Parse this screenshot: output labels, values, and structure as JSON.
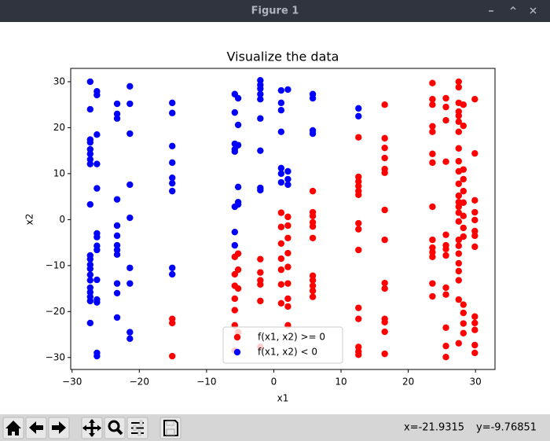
{
  "window": {
    "title": "Figure 1"
  },
  "status": {
    "x": "x=-21.9315",
    "y": "y=-9.76851"
  },
  "chart_data": {
    "type": "scatter",
    "title": "Visualize the data",
    "x_label": "x1",
    "y_label": "x2",
    "xlim": [
      -30.2,
      32.9
    ],
    "ylim": [
      -32.6,
      32.9
    ],
    "xticks": [
      {
        "value": -30,
        "label": "−30"
      },
      {
        "value": -20,
        "label": "−20"
      },
      {
        "value": -10,
        "label": "−10"
      },
      0,
      10,
      20,
      30
    ],
    "yticks": [
      {
        "value": -30,
        "label": "−30"
      },
      {
        "value": -20,
        "label": "−20"
      },
      {
        "value": -10,
        "label": "−10"
      },
      0,
      10,
      20,
      30
    ],
    "legend": "lower center",
    "series": [
      {
        "name": "f(x1, x2) >= 0",
        "color": "#ff0000",
        "x": [
          -15.1,
          -15.1,
          -15.1,
          -5.8,
          -5.8,
          -5.8,
          -5.8,
          -5.8,
          -5.8,
          -5.8,
          -5.3,
          -5.3,
          -5.3,
          -5.3,
          -2.0,
          -2.0,
          -2.0,
          -2.0,
          -2.0,
          -2.0,
          1.1,
          1.1,
          1.1,
          1.1,
          1.1,
          1.1,
          1.1,
          2.1,
          2.1,
          2.1,
          2.1,
          2.1,
          2.1,
          2.1,
          2.1,
          2.1,
          5.8,
          5.8,
          5.8,
          5.8,
          5.8,
          5.8,
          5.8,
          5.8,
          5.8,
          5.8,
          5.8,
          12.6,
          12.6,
          12.6,
          12.6,
          12.6,
          12.6,
          12.6,
          12.6,
          12.6,
          12.6,
          12.6,
          12.6,
          12.6,
          12.6,
          16.5,
          16.5,
          16.5,
          16.5,
          16.5,
          16.5,
          16.5,
          16.5,
          16.5,
          16.5,
          16.5,
          16.5,
          16.5,
          16.5,
          23.6,
          23.6,
          23.6,
          23.6,
          23.6,
          23.6,
          23.6,
          23.6,
          23.6,
          23.6,
          23.6,
          23.6,
          23.6,
          23.6,
          25.6,
          25.6,
          25.6,
          25.6,
          25.6,
          25.6,
          25.6,
          25.6,
          25.6,
          25.6,
          25.6,
          25.6,
          25.6,
          27.5,
          27.5,
          27.5,
          27.5,
          27.5,
          27.5,
          27.5,
          27.5,
          27.5,
          27.5,
          27.5,
          27.5,
          27.5,
          27.5,
          27.5,
          27.5,
          27.5,
          27.5,
          27.5,
          27.5,
          27.5,
          27.5,
          27.5,
          27.5,
          28.2,
          28.2,
          28.2,
          28.2,
          28.2,
          28.2,
          28.2,
          28.2,
          28.2,
          28.2,
          28.2,
          28.2,
          28.2,
          29.9,
          29.9,
          29.9,
          29.9,
          29.9,
          29.9,
          29.9,
          29.9,
          29.9,
          29.9,
          29.9,
          29.9,
          29.9
        ],
        "values": [
          -21.6,
          -22.5,
          -29.7,
          -8.1,
          -11.9,
          -14.4,
          -17.2,
          -19.7,
          -23.0,
          -28.5,
          -7.4,
          -10.9,
          -15.0,
          -24.5,
          -8.6,
          -11.5,
          -13.2,
          -14.1,
          -17.7,
          -27.7,
          1.5,
          -1.6,
          -5.2,
          -8.5,
          -10.9,
          -14.1,
          -18.2,
          0.6,
          -1.3,
          -4.0,
          -7.3,
          -10.3,
          -13.9,
          -17.2,
          -18.9,
          -23.0,
          6.2,
          1.6,
          0.8,
          -0.6,
          -1.5,
          -4.0,
          -12.2,
          -13.2,
          -14.4,
          -15.5,
          -16.8,
          17.9,
          9.3,
          8.3,
          7.3,
          6.2,
          5.4,
          -0.8,
          -2.1,
          -6.6,
          -19.2,
          -21.6,
          -27.7,
          -28.7,
          -29.4,
          25.0,
          17.7,
          15.6,
          13.4,
          11.0,
          10.2,
          2.1,
          -4.4,
          -13.8,
          -15.0,
          -21.6,
          -22.3,
          -24.4,
          -29.2,
          29.7,
          26.2,
          25.0,
          20.3,
          19.1,
          14.3,
          12.4,
          2.8,
          -4.4,
          -6.1,
          -7.1,
          -8.1,
          -13.9,
          -16.7,
          26.4,
          24.5,
          21.6,
          12.6,
          -3.3,
          -5.6,
          -6.4,
          -7.8,
          -14.8,
          -16.3,
          -23.5,
          -27.5,
          -29.9,
          30.0,
          28.8,
          25.4,
          23.5,
          22.6,
          21.3,
          19.1,
          15.5,
          12.7,
          10.5,
          7.8,
          5.2,
          3.8,
          2.8,
          1.5,
          -0.4,
          -4.4,
          -5.7,
          -7.4,
          -9.5,
          -11.2,
          -13.2,
          -17.4,
          -26.9,
          25.0,
          20.4,
          10.9,
          8.8,
          6.2,
          3.7,
          0.8,
          -1.8,
          -3.7,
          -18.5,
          -20.3,
          -22.6,
          -24.7,
          26.2,
          14.4,
          4.2,
          1.6,
          -0.1,
          -2.5,
          -3.5,
          -5.9,
          -21.1,
          -22.5,
          -24.0,
          -27.3,
          -29.0
        ]
      },
      {
        "name": "f(x1, x2) < 0",
        "color": "#0000ff",
        "x": [
          -27.3,
          -27.3,
          -27.3,
          -27.3,
          -27.3,
          -27.3,
          -27.3,
          -27.3,
          -27.3,
          -27.3,
          -27.3,
          -27.3,
          -27.3,
          -27.3,
          -27.3,
          -27.3,
          -27.3,
          -27.3,
          -27.3,
          -27.3,
          -26.3,
          -26.3,
          -26.3,
          -26.3,
          -26.3,
          -26.3,
          -26.3,
          -26.3,
          -26.3,
          -26.3,
          -26.3,
          -26.3,
          -26.3,
          -26.3,
          -23.3,
          -23.3,
          -23.3,
          -23.3,
          -23.3,
          -23.3,
          -23.3,
          -23.3,
          -23.3,
          -23.3,
          -23.3,
          -23.3,
          -21.4,
          -21.4,
          -21.4,
          -21.4,
          -21.4,
          -21.4,
          -21.4,
          -21.4,
          -21.4,
          -15.1,
          -15.1,
          -15.1,
          -15.1,
          -15.1,
          -15.1,
          -15.1,
          -15.1,
          -15.1,
          -5.8,
          -5.8,
          -5.8,
          -5.8,
          -5.8,
          -5.8,
          -5.8,
          -5.8,
          -5.3,
          -5.3,
          -5.3,
          -5.3,
          -5.3,
          -5.3,
          -2.0,
          -2.0,
          -2.0,
          -2.0,
          -2.0,
          -2.0,
          -2.0,
          -2.0,
          -2.0,
          1.1,
          1.1,
          1.1,
          1.1,
          1.1,
          1.1,
          1.1,
          2.1,
          2.1,
          2.1,
          2.1,
          5.8,
          5.8,
          5.8,
          5.8,
          12.6,
          12.6
        ],
        "values": [
          30.0,
          24.0,
          17.4,
          16.8,
          15.3,
          14.3,
          13.1,
          12.1,
          3.3,
          -7.8,
          -8.6,
          -9.8,
          -10.7,
          -12.0,
          -13.2,
          -14.8,
          -15.8,
          -16.8,
          -17.7,
          -22.5,
          27.9,
          27.1,
          18.5,
          12.1,
          6.8,
          -3.0,
          -3.8,
          -5.7,
          -6.6,
          -13.1,
          -17.4,
          -18.0,
          -29.0,
          -29.7,
          25.2,
          23.0,
          22.0,
          4.4,
          -1.3,
          -3.5,
          -5.6,
          -6.6,
          -7.6,
          -13.9,
          -16.0,
          -21.3,
          29.0,
          25.2,
          18.7,
          7.6,
          0.4,
          -10.5,
          -13.9,
          -24.5,
          -25.9,
          25.4,
          23.2,
          16.0,
          12.4,
          9.1,
          7.9,
          6.2,
          -10.5,
          -11.9,
          27.3,
          23.3,
          16.5,
          15.3,
          14.8,
          2.8,
          -2.7,
          -5.6,
          26.4,
          20.6,
          16.2,
          7.1,
          3.8,
          3.3,
          30.3,
          29.3,
          28.5,
          27.3,
          26.2,
          22.0,
          15.0,
          6.9,
          6.4,
          28.1,
          25.4,
          23.8,
          19.1,
          11.2,
          10.0,
          8.1,
          28.3,
          10.5,
          8.8,
          7.6,
          27.3,
          26.4,
          19.4,
          18.7,
          24.2,
          22.5
        ]
      }
    ]
  }
}
